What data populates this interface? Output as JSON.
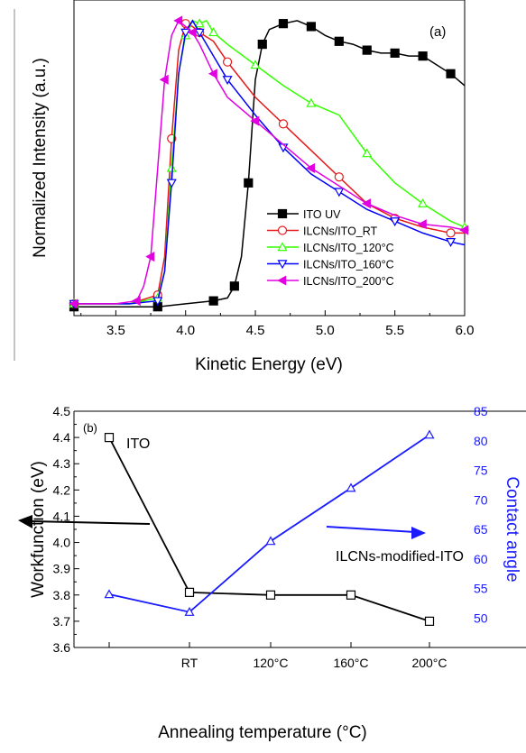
{
  "chart_data": [
    {
      "type": "line",
      "panel_label": "(a)",
      "xlabel": "Kinetic Energy (eV)",
      "ylabel": "Normalized Intensity (a.u.)",
      "xlim": [
        3.2,
        6.0
      ],
      "ylim": [
        0,
        1.07
      ],
      "xticks": [
        "3.5",
        "4.0",
        "4.5",
        "5.0",
        "5.5",
        "6.0"
      ],
      "legend_placement": "lower-right",
      "series": [
        {
          "name": "ITO UV",
          "color": "#000000",
          "marker": "filled-square",
          "x": [
            3.2,
            3.5,
            3.8,
            4.0,
            4.2,
            4.3,
            4.35,
            4.4,
            4.45,
            4.5,
            4.55,
            4.6,
            4.7,
            4.8,
            4.9,
            5.0,
            5.1,
            5.2,
            5.3,
            5.4,
            5.5,
            5.6,
            5.7,
            5.8,
            5.9,
            6.0
          ],
          "y": [
            0.03,
            0.03,
            0.03,
            0.04,
            0.05,
            0.06,
            0.1,
            0.2,
            0.45,
            0.8,
            0.92,
            0.97,
            0.99,
            1.0,
            0.98,
            0.95,
            0.93,
            0.92,
            0.9,
            0.89,
            0.89,
            0.88,
            0.88,
            0.85,
            0.82,
            0.78
          ]
        },
        {
          "name": "ILCNs/ITO_RT",
          "color": "#e41a1c",
          "marker": "open-circle",
          "x": [
            3.2,
            3.6,
            3.8,
            3.85,
            3.9,
            3.95,
            4.0,
            4.05,
            4.1,
            4.2,
            4.3,
            4.5,
            4.7,
            4.9,
            5.1,
            5.3,
            5.5,
            5.7,
            5.9,
            6.0
          ],
          "y": [
            0.04,
            0.04,
            0.07,
            0.2,
            0.6,
            0.9,
            0.99,
            0.98,
            0.96,
            0.93,
            0.86,
            0.74,
            0.65,
            0.56,
            0.47,
            0.38,
            0.33,
            0.3,
            0.28,
            0.28
          ]
        },
        {
          "name": "ILCNs/ITO_120°C",
          "color": "#33ff00",
          "marker": "open-triangle-up",
          "x": [
            3.2,
            3.6,
            3.8,
            3.85,
            3.9,
            3.95,
            4.0,
            4.05,
            4.1,
            4.15,
            4.2,
            4.3,
            4.5,
            4.7,
            4.9,
            5.1,
            5.3,
            5.5,
            5.7,
            5.9,
            6.0
          ],
          "y": [
            0.04,
            0.04,
            0.06,
            0.15,
            0.5,
            0.82,
            0.95,
            1.0,
            0.99,
            1.0,
            0.96,
            0.92,
            0.85,
            0.78,
            0.72,
            0.68,
            0.55,
            0.45,
            0.38,
            0.32,
            0.3
          ]
        },
        {
          "name": "ILCNs/ITO_160°C",
          "color": "#0000ff",
          "marker": "open-triangle-down",
          "x": [
            3.2,
            3.6,
            3.8,
            3.85,
            3.9,
            3.95,
            4.0,
            4.05,
            4.1,
            4.2,
            4.3,
            4.5,
            4.7,
            4.9,
            5.1,
            5.3,
            5.5,
            5.7,
            5.9,
            6.0
          ],
          "y": [
            0.04,
            0.04,
            0.05,
            0.15,
            0.45,
            0.82,
            0.96,
            1.0,
            0.96,
            0.88,
            0.8,
            0.68,
            0.57,
            0.48,
            0.42,
            0.36,
            0.32,
            0.28,
            0.25,
            0.24
          ]
        },
        {
          "name": "ILCNs/ITO_200°C",
          "color": "#e000e0",
          "marker": "filled-triangle-left",
          "x": [
            3.2,
            3.5,
            3.65,
            3.7,
            3.75,
            3.8,
            3.85,
            3.9,
            3.95,
            4.0,
            4.05,
            4.1,
            4.2,
            4.3,
            4.5,
            4.7,
            4.9,
            5.1,
            5.3,
            5.5,
            5.7,
            5.9,
            6.0
          ],
          "y": [
            0.04,
            0.04,
            0.05,
            0.1,
            0.2,
            0.5,
            0.8,
            0.95,
            1.0,
            0.98,
            0.96,
            0.92,
            0.82,
            0.74,
            0.66,
            0.58,
            0.5,
            0.44,
            0.38,
            0.34,
            0.31,
            0.3,
            0.29
          ]
        }
      ]
    },
    {
      "type": "line",
      "panel_label": "(b)",
      "xlabel": "Annealing temperature (°C)",
      "ylabel": "Workfunction (eV)",
      "ylabel_right": "Contact angle",
      "ylim": [
        3.6,
        4.5
      ],
      "ylim_right": [
        45,
        85
      ],
      "yticks": [
        "3.6",
        "3.7",
        "3.8",
        "3.9",
        "4.0",
        "4.1",
        "4.2",
        "4.3",
        "4.4",
        "4.5"
      ],
      "yticks_right": [
        "50",
        "55",
        "60",
        "65",
        "70",
        "75",
        "80",
        "85"
      ],
      "categories": [
        "",
        "RT",
        "120°C",
        "160°C",
        "200°C"
      ],
      "annotations": [
        "ITO",
        "ILCNs-modified-ITO"
      ],
      "series": [
        {
          "axis": "left",
          "color": "#000000",
          "marker": "open-square",
          "values": [
            4.4,
            3.81,
            3.8,
            3.8,
            3.7
          ]
        },
        {
          "axis": "right",
          "color": "#1a1aff",
          "marker": "open-triangle-up",
          "values": [
            54,
            51,
            63,
            72,
            81
          ]
        }
      ]
    }
  ]
}
